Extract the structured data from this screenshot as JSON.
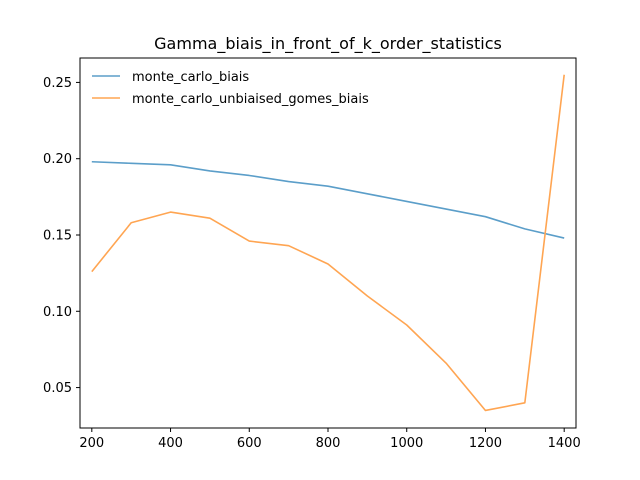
{
  "chart_data": {
    "type": "line",
    "title": "Gamma_biais_in_front_of_k_order_statistics",
    "xlabel": "",
    "ylabel": "",
    "xlim": [
      170,
      1430
    ],
    "ylim": [
      0.0235,
      0.266
    ],
    "grid": false,
    "legend_position": "top-left",
    "x_ticks": [
      200,
      400,
      600,
      800,
      1000,
      1200,
      1400
    ],
    "x_tick_labels": [
      "200",
      "400",
      "600",
      "800",
      "1000",
      "1200",
      "1400"
    ],
    "y_ticks": [
      0.05,
      0.1,
      0.15,
      0.2,
      0.25
    ],
    "y_tick_labels": [
      "0.05",
      "0.10",
      "0.15",
      "0.20",
      "0.25"
    ],
    "x": [
      200,
      300,
      400,
      500,
      600,
      700,
      800,
      900,
      1000,
      1100,
      1200,
      1300,
      1400
    ],
    "series": [
      {
        "name": "monte_carlo_biais",
        "color": "#5b9ec9",
        "values": [
          0.198,
          0.197,
          0.196,
          0.192,
          0.189,
          0.185,
          0.182,
          0.177,
          0.172,
          0.167,
          0.162,
          0.154,
          0.148
        ]
      },
      {
        "name": "monte_carlo_unbiaised_gomes_biais",
        "color": "#ffa552",
        "values": [
          0.126,
          0.158,
          0.165,
          0.161,
          0.146,
          0.143,
          0.131,
          0.11,
          0.091,
          0.066,
          0.035,
          0.04,
          0.255
        ]
      }
    ]
  }
}
